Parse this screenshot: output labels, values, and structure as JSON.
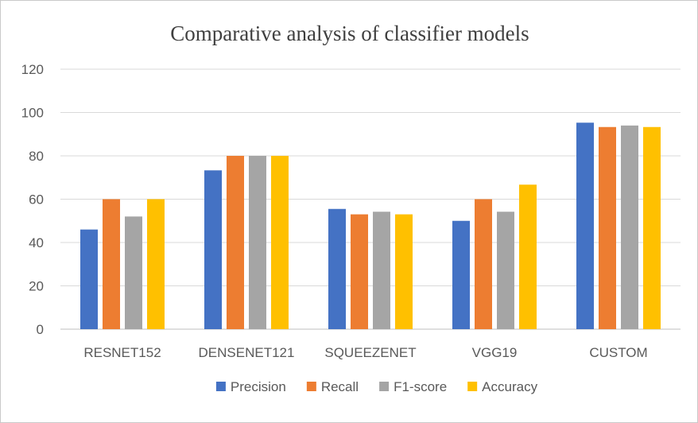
{
  "chart_data": {
    "type": "bar",
    "title": "Comparative analysis of classifier models",
    "xlabel": "",
    "ylabel": "",
    "ylim": [
      0,
      120
    ],
    "yticks": [
      0,
      20,
      40,
      60,
      80,
      100,
      120
    ],
    "grid": true,
    "legend_position": "bottom",
    "categories": [
      "RESNET152",
      "DENSENET121",
      "SQUEEZENET",
      "VGG19",
      "CUSTOM"
    ],
    "series": [
      {
        "name": "Precision",
        "color": "#4472c4",
        "values": [
          46,
          73.3,
          55.5,
          50,
          95.3
        ]
      },
      {
        "name": "Recall",
        "color": "#ed7d31",
        "values": [
          60,
          80,
          53,
          60,
          93.3
        ]
      },
      {
        "name": "F1-score",
        "color": "#a5a5a5",
        "values": [
          52,
          80,
          54.2,
          54.2,
          94
        ]
      },
      {
        "name": "Accuracy",
        "color": "#ffc000",
        "values": [
          60,
          80,
          53,
          66.7,
          93.3
        ]
      }
    ]
  }
}
